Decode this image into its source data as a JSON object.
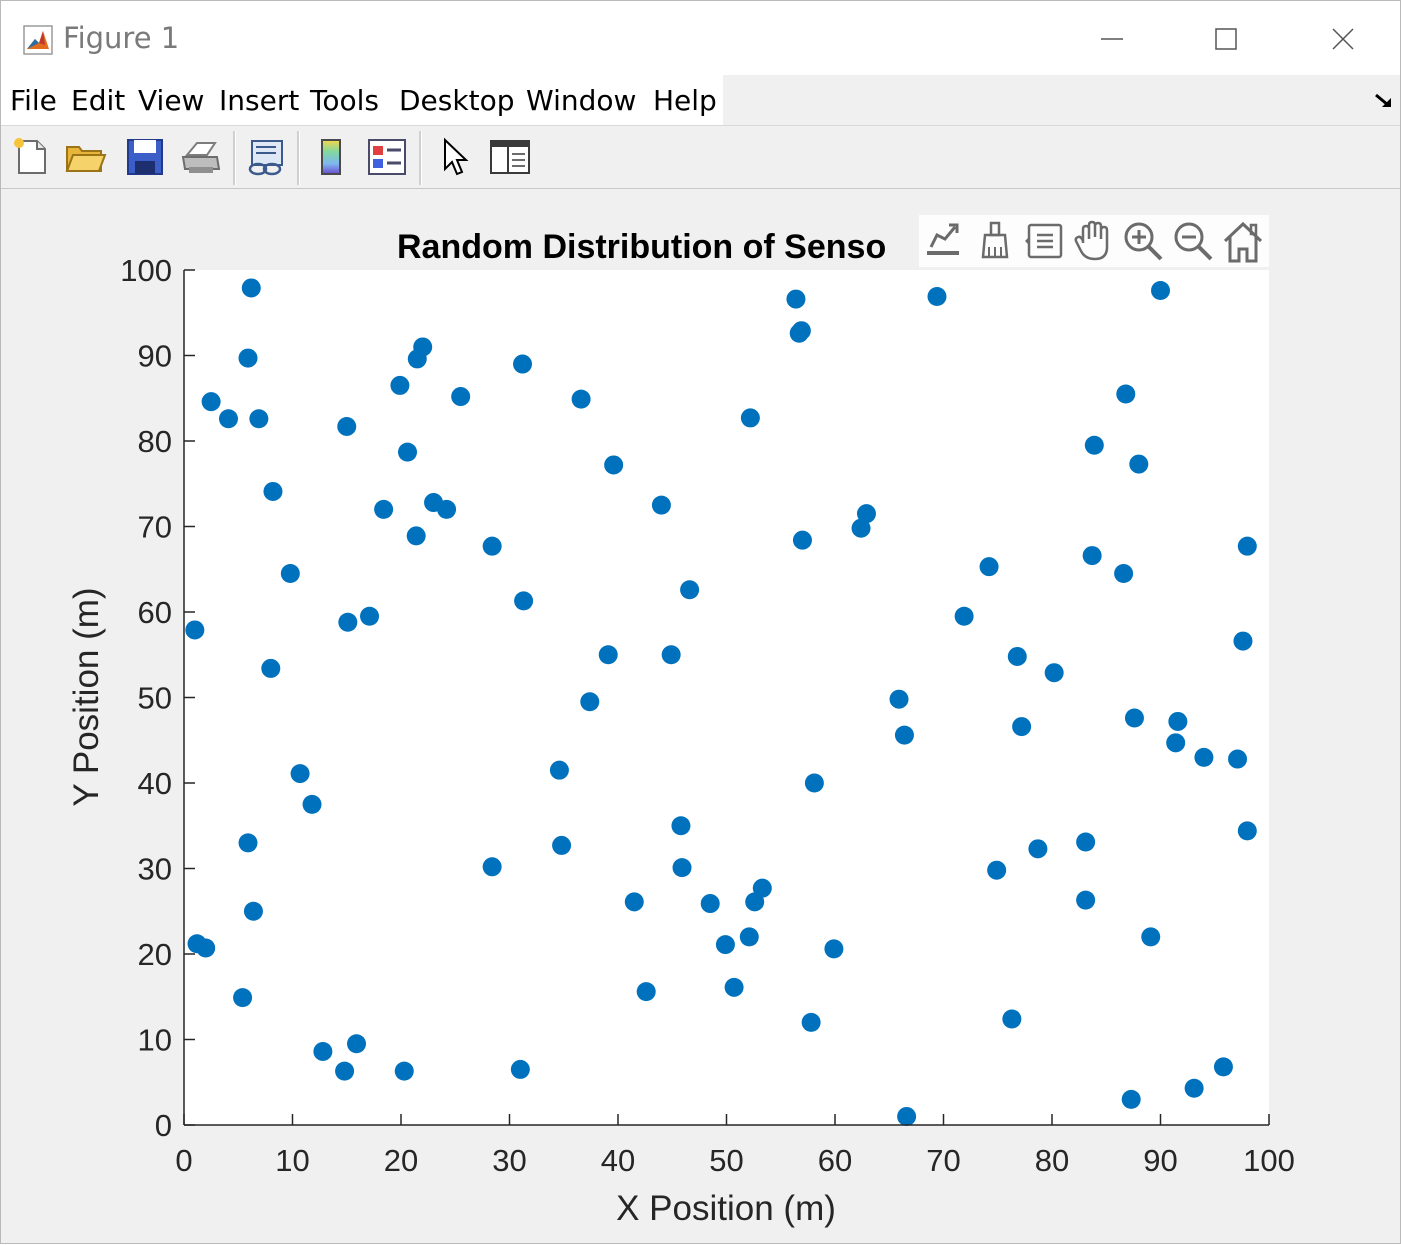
{
  "window": {
    "title": "Figure 1",
    "icon": "matlab-icon",
    "controls": [
      "minimize-icon",
      "maximize-icon",
      "close-icon"
    ]
  },
  "menu": {
    "items": [
      "File",
      "Edit",
      "View",
      "Insert",
      "Tools",
      "Desktop",
      "Window",
      "Help"
    ]
  },
  "toolbar": {
    "buttons": [
      "new-figure-icon",
      "open-file-icon",
      "save-icon",
      "print-icon",
      "link-plot-icon",
      "colorbar-icon",
      "legend-icon",
      "edit-plot-icon",
      "property-inspector-icon"
    ]
  },
  "axes_toolbar": {
    "buttons": [
      "export-icon",
      "brush-icon",
      "datatip-icon",
      "pan-icon",
      "zoom-in-icon",
      "zoom-out-icon",
      "home-icon"
    ]
  },
  "colors": {
    "marker": "#0072BD",
    "axes_background": "#ffffff",
    "figure_background": "#f0f0f0"
  },
  "chart_data": {
    "type": "scatter",
    "title": "Random Distribution of Senso",
    "xlabel": "X Position (m)",
    "ylabel": "Y Position (m)",
    "xlim": [
      0,
      100
    ],
    "ylim": [
      0,
      100
    ],
    "xticks": [
      0,
      10,
      20,
      30,
      40,
      50,
      60,
      70,
      80,
      90,
      100
    ],
    "yticks": [
      0,
      10,
      20,
      30,
      40,
      50,
      60,
      70,
      80,
      90,
      100
    ],
    "grid": false,
    "series": [
      {
        "marker": "filled-circle",
        "x": [
          6.2,
          5.9,
          6.9,
          2.5,
          4.1,
          8.2,
          9.8,
          1.0,
          8.0,
          10.7,
          11.8,
          5.9,
          6.4,
          1.2,
          2.0,
          5.4,
          12.8,
          14.8,
          15.9,
          20.3,
          22.0,
          21.5,
          19.9,
          15.0,
          20.6,
          18.4,
          23.0,
          24.2,
          21.4,
          25.5,
          17.1,
          15.1,
          28.4,
          31.2,
          31.3,
          28.4,
          31.0,
          36.6,
          39.6,
          39.1,
          37.4,
          34.6,
          34.8,
          44.0,
          44.9,
          46.6,
          45.8,
          45.9,
          41.5,
          42.6,
          48.5,
          49.9,
          50.7,
          52.1,
          52.6,
          53.3,
          52.2,
          56.4,
          56.7,
          56.9,
          57.0,
          58.1,
          57.8,
          59.9,
          62.4,
          62.9,
          65.9,
          66.4,
          66.6,
          69.4,
          71.9,
          74.2,
          74.9,
          76.8,
          77.2,
          76.3,
          78.7,
          80.2,
          83.9,
          83.7,
          83.1,
          83.1,
          86.8,
          86.6,
          88.0,
          90.0,
          87.6,
          87.3,
          89.1,
          91.6,
          91.4,
          94.0,
          93.1,
          95.8,
          97.1,
          97.6,
          98.0,
          98.0
        ],
        "y": [
          97.9,
          89.7,
          82.6,
          84.6,
          82.6,
          74.1,
          64.5,
          57.9,
          53.4,
          41.1,
          37.5,
          33.0,
          25.0,
          21.2,
          20.7,
          14.9,
          8.6,
          6.3,
          9.5,
          6.3,
          91.0,
          89.6,
          86.5,
          81.7,
          78.7,
          72.0,
          72.8,
          72.0,
          68.9,
          85.2,
          59.5,
          58.8,
          67.7,
          89.0,
          61.3,
          30.2,
          6.5,
          84.9,
          77.2,
          55.0,
          49.5,
          41.5,
          32.7,
          72.5,
          55.0,
          62.6,
          35.0,
          30.1,
          26.1,
          15.6,
          25.9,
          21.1,
          16.1,
          22.0,
          26.1,
          27.7,
          82.7,
          96.6,
          92.6,
          92.9,
          68.4,
          40.0,
          12.0,
          20.6,
          69.8,
          71.5,
          49.8,
          45.6,
          1.0,
          96.9,
          59.5,
          65.3,
          29.8,
          54.8,
          46.6,
          12.4,
          32.3,
          52.9,
          79.5,
          66.6,
          33.1,
          26.3,
          85.5,
          64.5,
          77.3,
          97.6,
          47.6,
          3.0,
          22.0,
          47.2,
          44.7,
          43.0,
          4.3,
          6.8,
          42.8,
          56.6,
          67.7,
          34.4
        ]
      }
    ]
  }
}
